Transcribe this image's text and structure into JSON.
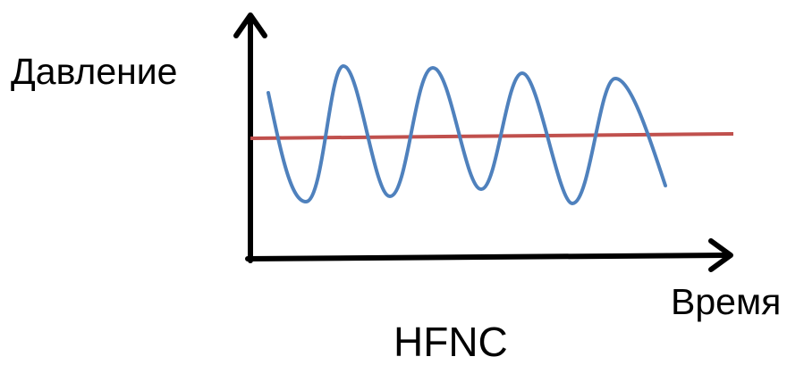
{
  "labels": {
    "y_axis": "Давление",
    "x_axis": "Время",
    "caption": "HFNC"
  },
  "colors": {
    "axes": "#000000",
    "oscillation": "#4f81bd",
    "mean_line": "#c0504d"
  },
  "curves": {
    "oscillation": "oscillating-pressure",
    "mean": "constant-mean-pressure"
  }
}
